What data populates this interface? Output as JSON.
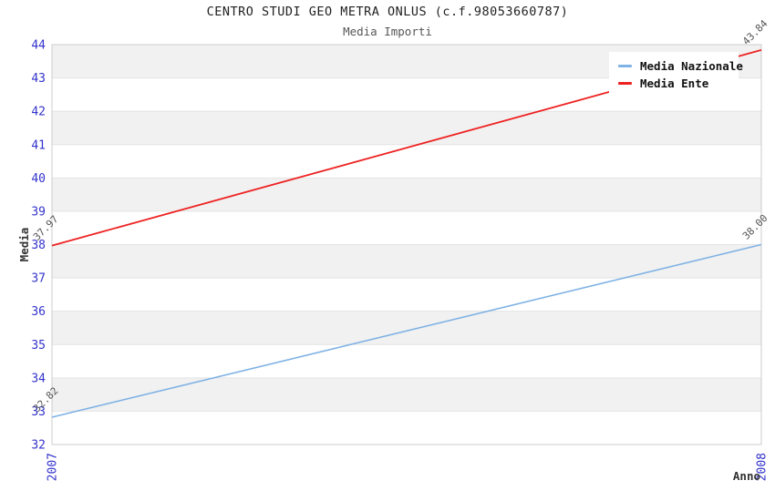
{
  "chart_data": {
    "type": "line",
    "title": "CENTRO STUDI GEO METRA ONLUS (c.f.98053660787)",
    "subtitle": "Media Importi",
    "xlabel": "Anno",
    "ylabel": "Media",
    "x": [
      2007,
      2008
    ],
    "xtick_labels": [
      "2007",
      "2008"
    ],
    "ylim": [
      32,
      44
    ],
    "ytick_labels": [
      "32",
      "33",
      "34",
      "35",
      "36",
      "37",
      "38",
      "39",
      "40",
      "41",
      "42",
      "43",
      "44"
    ],
    "grid": "horizontal-unit-bands-alternating",
    "legend_position": "top-right",
    "series": [
      {
        "name": "Media Nazionale",
        "color": "#7fb2e5",
        "values": [
          32.82,
          38.0
        ],
        "point_labels": [
          "32.82",
          "38.00"
        ]
      },
      {
        "name": "Media Ente",
        "color": "#ee2222",
        "values": [
          37.97,
          43.84
        ],
        "point_labels": [
          "37.97",
          "43.84"
        ]
      }
    ],
    "style_colors": {
      "tick_label_blue": "#3333cc",
      "band_gray": "#f1f1f1",
      "grid_line": "#e4e4e4",
      "plot_border": "#cccccc",
      "point_label": "#555555",
      "axis_label": "#333333"
    }
  }
}
